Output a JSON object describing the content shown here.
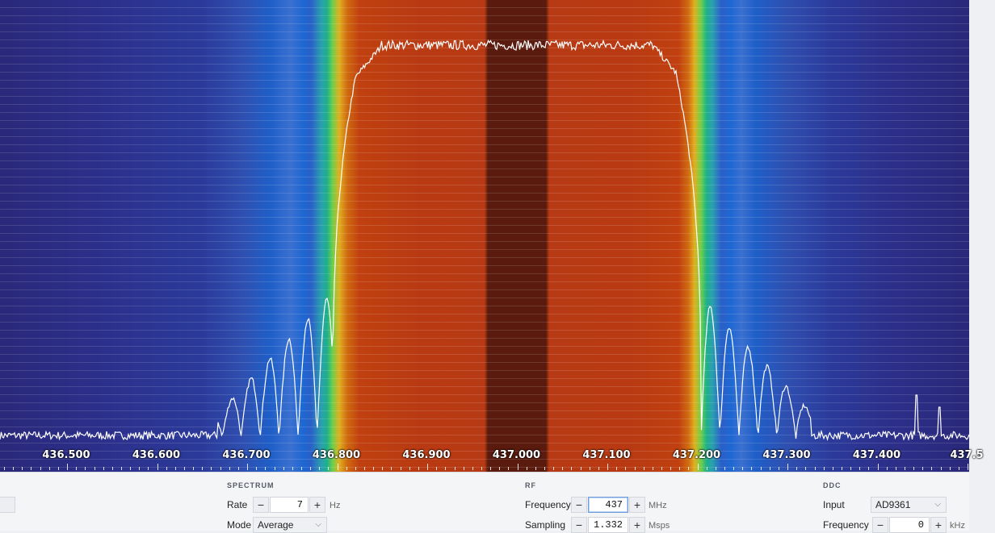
{
  "spectrum": {
    "axis_labels": [
      "436.500",
      "436.600",
      "436.700",
      "436.800",
      "436.900",
      "437.000",
      "437.100",
      "437.200",
      "437.300",
      "437.400",
      "437.5"
    ]
  },
  "spectrum_panel": {
    "title": "SPECTRUM",
    "rate": {
      "label": "Rate",
      "value": "7",
      "unit": "Hz",
      "minus": "−",
      "plus": "+"
    },
    "mode": {
      "label": "Mode",
      "value": "Average"
    }
  },
  "rf_panel": {
    "title": "RF",
    "frequency": {
      "label": "Frequency",
      "value": "437",
      "unit": "MHz",
      "minus": "−",
      "plus": "+"
    },
    "sampling": {
      "label": "Sampling",
      "value": "1.332",
      "unit": "Msps",
      "minus": "−",
      "plus": "+"
    }
  },
  "ddc_panel": {
    "title": "DDC",
    "input": {
      "label": "Input",
      "value": "AD9361"
    },
    "frequency": {
      "label": "Frequency",
      "value": "0",
      "unit": "kHz",
      "minus": "−",
      "plus": "+"
    }
  },
  "icons": {
    "chevron": "chevron-down-icon"
  }
}
